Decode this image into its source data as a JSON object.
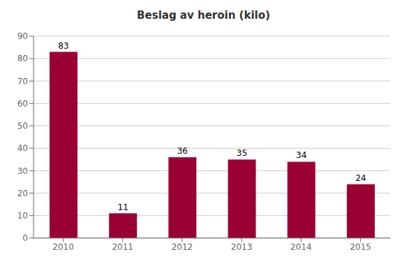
{
  "chart_data": {
    "type": "bar",
    "title": "Beslag av heroin (kilo)",
    "categories": [
      "2010",
      "2011",
      "2012",
      "2013",
      "2014",
      "2015"
    ],
    "values": [
      83,
      11,
      36,
      35,
      34,
      24
    ],
    "color": "#9B0034",
    "ylim": [
      0,
      90
    ],
    "yticks": [
      0,
      10,
      20,
      30,
      40,
      50,
      60,
      70,
      80,
      90
    ],
    "grid": true,
    "data_labels": true
  }
}
